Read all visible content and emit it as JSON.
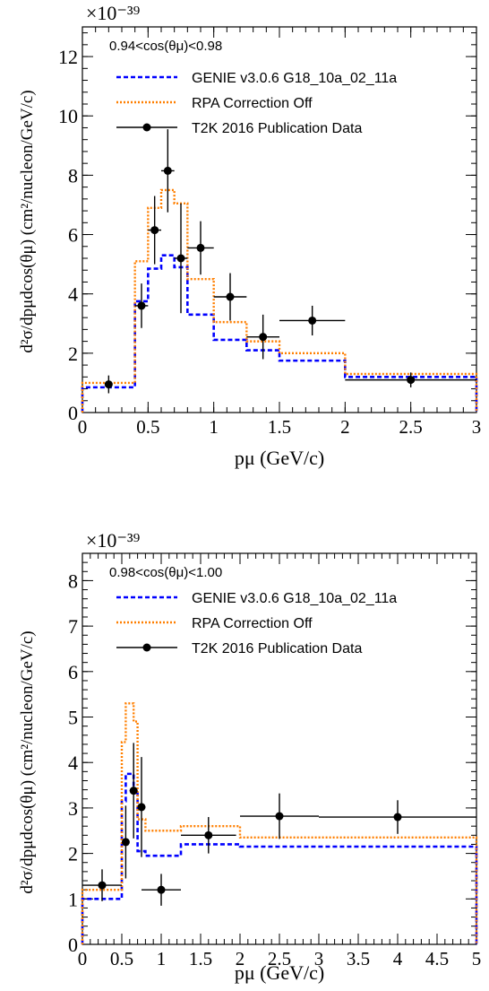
{
  "chart_data": [
    {
      "type": "line",
      "title": "0.94<cos(θμ)<0.98",
      "xlabel": "pμ (GeV/c)",
      "ylabel": "d²σ/dpμdcos(θμ) (cm²/nucleon/GeV/c)",
      "y_multiplier": "×10⁻³⁹",
      "xlim": [
        0,
        3
      ],
      "ylim": [
        0,
        13
      ],
      "x_ticks": [
        "0",
        "0.5",
        "1",
        "1.5",
        "2",
        "2.5",
        "3"
      ],
      "y_ticks": [
        "0",
        "2",
        "4",
        "6",
        "8",
        "10",
        "12"
      ],
      "bin_edges": [
        0,
        0.4,
        0.5,
        0.6,
        0.7,
        0.8,
        1.0,
        1.25,
        1.5,
        2.0,
        3.0
      ],
      "series": [
        {
          "name": "GENIE v3.0.6 G18_10a_02_11a",
          "style": "dashed",
          "color": "#0000ff",
          "values": [
            0.85,
            3.75,
            4.85,
            5.3,
            4.9,
            3.3,
            2.45,
            2.1,
            1.75,
            1.2
          ]
        },
        {
          "name": "RPA Correction Off",
          "style": "dotted",
          "color": "#ff7f00",
          "values": [
            1.0,
            5.1,
            6.9,
            7.5,
            7.05,
            4.5,
            3.05,
            2.4,
            2.0,
            1.3
          ]
        },
        {
          "name": "T2K 2016 Publication Data",
          "style": "points",
          "color": "#000000",
          "points": [
            {
              "x": 0.2,
              "y": 0.95,
              "xerr": 0.0,
              "yerr": 0.3
            },
            {
              "x": 0.45,
              "y": 3.6,
              "xerr": 0.05,
              "yerr": 0.75
            },
            {
              "x": 0.55,
              "y": 6.15,
              "xerr": 0.05,
              "yerr": 1.15
            },
            {
              "x": 0.65,
              "y": 8.15,
              "xerr": 0.05,
              "yerr": 1.4
            },
            {
              "x": 0.75,
              "y": 5.2,
              "xerr": 0.05,
              "yerr": 1.85
            },
            {
              "x": 0.9,
              "y": 5.55,
              "xerr": 0.1,
              "yerr": 0.9
            },
            {
              "x": 1.125,
              "y": 3.9,
              "xerr": 0.125,
              "yerr": 0.8
            },
            {
              "x": 1.375,
              "y": 2.55,
              "xerr": 0.125,
              "yerr": 0.75
            },
            {
              "x": 1.75,
              "y": 3.1,
              "xerr": 0.25,
              "yerr": 0.5
            },
            {
              "x": 2.5,
              "y": 1.1,
              "xerr": 0.5,
              "yerr": 0.25
            }
          ]
        }
      ],
      "legend_position": "top-left"
    },
    {
      "type": "line",
      "title": "0.98<cos(θμ)<1.00",
      "xlabel": "pμ (GeV/c)",
      "ylabel": "d²σ/dpμdcos(θμ) (cm²/nucleon/GeV/c)",
      "y_multiplier": "×10⁻³⁹",
      "xlim": [
        0,
        5
      ],
      "ylim": [
        0,
        8.6
      ],
      "x_ticks": [
        "0",
        "0.5",
        "1",
        "1.5",
        "2",
        "2.5",
        "3",
        "3.5",
        "4",
        "4.5",
        "5"
      ],
      "y_ticks": [
        "0",
        "1",
        "2",
        "3",
        "4",
        "5",
        "6",
        "7",
        "8"
      ],
      "bin_edges": [
        0,
        0.5,
        0.55,
        0.65,
        0.7,
        0.8,
        1.25,
        2.0,
        3.0,
        5.0
      ],
      "series": [
        {
          "name": "GENIE v3.0.6 G18_10a_02_11a",
          "style": "dashed",
          "color": "#0000ff",
          "values": [
            1.0,
            3.15,
            3.75,
            3.4,
            2.05,
            1.95,
            2.2,
            2.15,
            2.15
          ]
        },
        {
          "name": "RPA Correction Off",
          "style": "dotted",
          "color": "#ff7f00",
          "values": [
            1.2,
            4.45,
            5.3,
            4.9,
            2.75,
            2.5,
            2.6,
            2.35,
            2.35
          ]
        },
        {
          "name": "T2K 2016 Publication Data",
          "style": "points",
          "color": "#000000",
          "points": [
            {
              "x": 0.25,
              "y": 1.3,
              "xerr": 0.25,
              "yerr": 0.35
            },
            {
              "x": 0.55,
              "y": 2.25,
              "xerr": 0.0,
              "yerr": 0.8
            },
            {
              "x": 0.65,
              "y": 3.38,
              "xerr": 0.05,
              "yerr": 1.05
            },
            {
              "x": 0.75,
              "y": 3.02,
              "xerr": 0.05,
              "yerr": 1.1
            },
            {
              "x": 1.0,
              "y": 1.2,
              "xerr": 0.25,
              "yerr": 0.35
            },
            {
              "x": 1.6,
              "y": 2.4,
              "xerr": 0.35,
              "yerr": 0.4
            },
            {
              "x": 2.5,
              "y": 2.82,
              "xerr": 0.5,
              "yerr": 0.5
            },
            {
              "x": 4.0,
              "y": 2.8,
              "xerr": 1.0,
              "yerr": 0.37
            }
          ]
        }
      ],
      "legend_position": "top-left"
    }
  ]
}
